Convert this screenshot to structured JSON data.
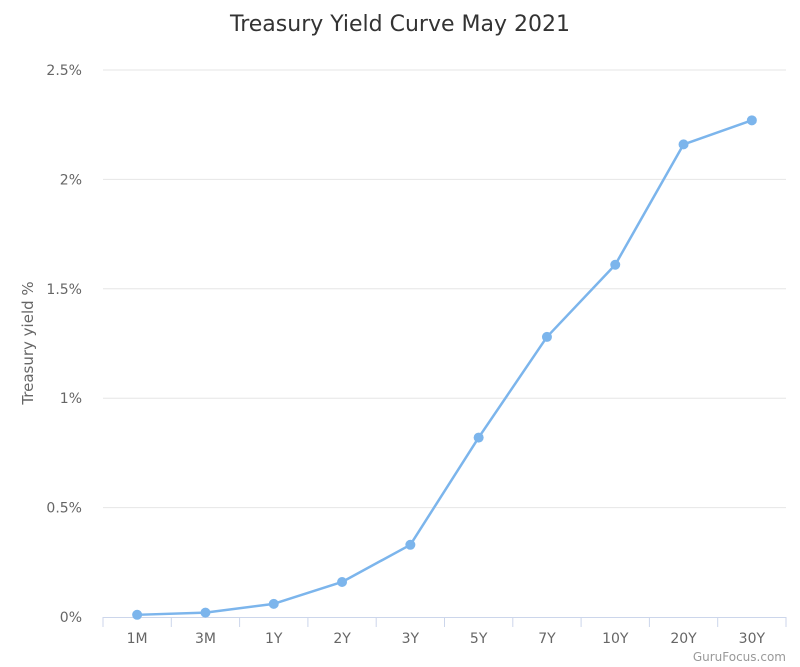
{
  "chart_data": {
    "type": "line",
    "title": "Treasury Yield Curve May 2021",
    "ylabel": "Treasury yield %",
    "xlabel": "",
    "categories": [
      "1M",
      "3M",
      "1Y",
      "2Y",
      "3Y",
      "5Y",
      "7Y",
      "10Y",
      "20Y",
      "30Y"
    ],
    "series": [
      {
        "values": [
          0.01,
          0.02,
          0.06,
          0.16,
          0.33,
          0.82,
          1.28,
          1.61,
          2.16,
          2.27
        ],
        "color": "#7cb5ec"
      }
    ],
    "ylim": [
      0,
      2.5
    ],
    "yticks": [
      {
        "value": 0,
        "label": "0%"
      },
      {
        "value": 0.5,
        "label": "0.5%"
      },
      {
        "value": 1,
        "label": "1%"
      },
      {
        "value": 1.5,
        "label": "1.5%"
      },
      {
        "value": 2,
        "label": "2%"
      },
      {
        "value": 2.5,
        "label": "2.5%"
      }
    ],
    "grid": true,
    "legend": "none"
  },
  "credit": "GuruFocus.com"
}
